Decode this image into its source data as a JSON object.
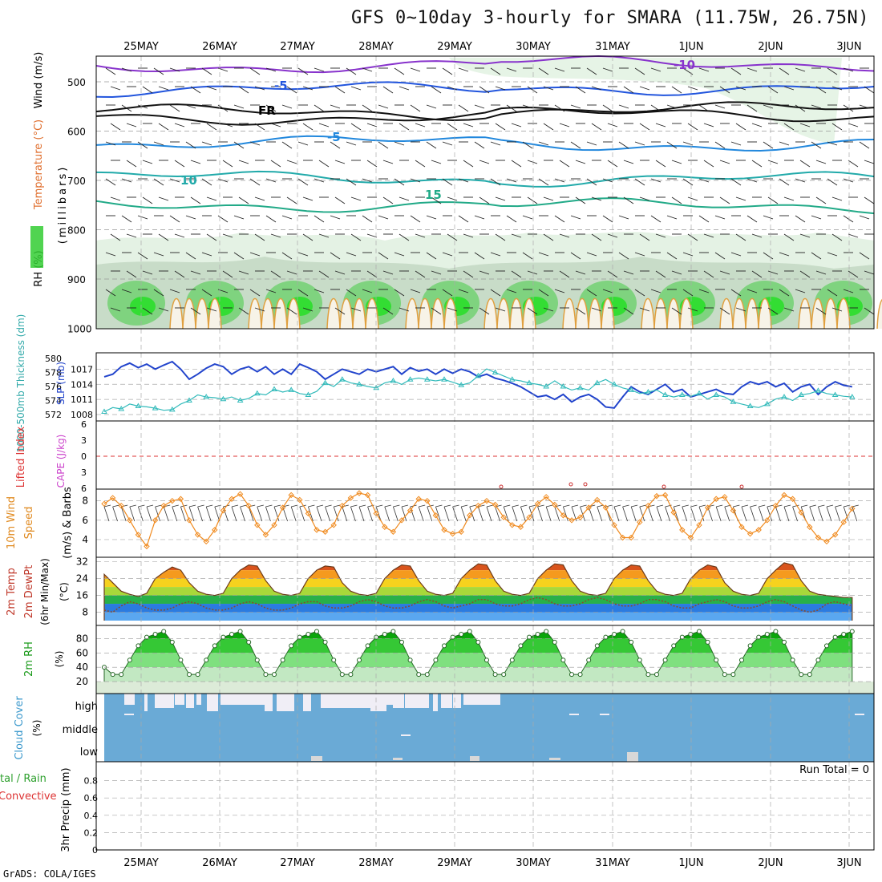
{
  "title": "GFS 0~10day 3-hourly for SMARA (11.75W, 26.75N)",
  "credit": "GrADS: COLA/IGES",
  "colors": {
    "rh_green": "#2ecc40",
    "temp_orange": "#f08a1e",
    "slp_blue": "#2244cc",
    "thickness_cyan": "#33bbbb",
    "cloud_blue": "#6aaad6",
    "li_red": "#dd3333",
    "cape_purple": "#cc44cc"
  },
  "chart_data": [
    {
      "panel": "upper-air",
      "type": "heatmap",
      "ylabel": "(millibars)",
      "ylabel_series": [
        "RH (%)",
        "Temperature (°C)",
        "Wind (m/s)"
      ],
      "x": [
        "25MAY",
        "26MAY",
        "27MAY",
        "28MAY",
        "29MAY",
        "30MAY",
        "31MAY",
        "1JUN",
        "2JUN",
        "3JUN"
      ],
      "y_ticks": [
        500,
        600,
        700,
        800,
        900,
        1000
      ],
      "ylim": [
        1000,
        450
      ],
      "contour_labels": [
        {
          "label": "-10",
          "pressure": 470
        },
        {
          "label": "-5",
          "pressure": 510
        },
        {
          "label": "FR",
          "pressure": 565
        },
        {
          "label": "-5",
          "pressure": 610
        },
        {
          "label": "10",
          "pressure": 695
        },
        {
          "label": "15",
          "pressure": 745
        }
      ]
    },
    {
      "panel": "slp-thickness",
      "type": "line",
      "y_left_label": "1000-500mb Thickness (dm)",
      "y_right_label": "SLP (mb)",
      "y_left_ticks": [
        572,
        574,
        576,
        578,
        580
      ],
      "y_right_ticks": [
        1008,
        1011,
        1014,
        1017
      ],
      "series": [
        {
          "name": "SLP (mb)",
          "values": [
            1015.5,
            1016,
            1017.5,
            1018.2,
            1017.3,
            1018,
            1017,
            1017.8,
            1018.5,
            1017,
            1015,
            1016,
            1017.2,
            1018,
            1017.5,
            1016,
            1017,
            1017.5,
            1016.5,
            1017.5,
            1016,
            1017,
            1016,
            1018,
            1017.3,
            1016.5,
            1015,
            1016,
            1017,
            1016.5,
            1016,
            1017,
            1016.5,
            1017,
            1017.5,
            1016,
            1017.3,
            1016.6,
            1017,
            1016,
            1017,
            1016.2,
            1017,
            1016.5,
            1015.5,
            1016,
            1015.2,
            1014.8,
            1014.2,
            1013.5,
            1012.5,
            1011.5,
            1011.8,
            1011,
            1012,
            1010.5,
            1011.5,
            1012,
            1011,
            1009.5,
            1009.3,
            1011.5,
            1013.5,
            1012.5,
            1012,
            1013,
            1014,
            1012.5,
            1013,
            1011.5,
            1012,
            1012.5,
            1013,
            1012.2,
            1012,
            1013.5,
            1014.5,
            1014,
            1014.5,
            1013.5,
            1014.2,
            1012.5,
            1013.5,
            1014,
            1012,
            1013.5,
            1014.5,
            1013.8,
            1013.5
          ]
        },
        {
          "name": "1000-500mb Thickness (dm)",
          "values": [
            572.4,
            573,
            572.8,
            573.5,
            573.2,
            573.1,
            572.9,
            572.6,
            572.7,
            573.5,
            574,
            574.8,
            574.5,
            574.4,
            574.2,
            574.5,
            574,
            574.3,
            575,
            574.8,
            575.6,
            575.2,
            575.5,
            575,
            574.8,
            575.3,
            576.5,
            576,
            577,
            576.5,
            576.3,
            576,
            575.8,
            576.5,
            576.8,
            576.3,
            577,
            577.2,
            577,
            576.8,
            577,
            576.6,
            576.2,
            576.5,
            577.5,
            578.5,
            578,
            577.5,
            577,
            576.8,
            576.5,
            576.3,
            576,
            576.8,
            576,
            575.5,
            575.8,
            575.5,
            576.5,
            577,
            576.3,
            575.8,
            575.5,
            575,
            575.2,
            575.5,
            574.8,
            574.5,
            574.8,
            574.6,
            575,
            574.2,
            574.8,
            574.5,
            573.8,
            573.5,
            573.2,
            573,
            573.5,
            574.2,
            574.5,
            574,
            574.8,
            575,
            575.4,
            575,
            574.8,
            574.6,
            574.5
          ]
        }
      ]
    },
    {
      "panel": "stability",
      "type": "line",
      "y_left_label": "Lifted Index",
      "y_right_label": "CAPE (J/kg)",
      "y_ticks": [
        -6,
        -3,
        0,
        3,
        6
      ],
      "series": [
        {
          "name": "CAPE (J/kg)",
          "points": [
            [
              45,
              1
            ],
            [
              60,
              1
            ],
            [
              75,
              1
            ],
            [
              85,
              1
            ]
          ]
        }
      ]
    },
    {
      "panel": "10m-wind",
      "type": "line",
      "ylabel": "10m Wind Speed (m/s) & Barbs",
      "y_ticks": [
        4,
        6,
        8
      ],
      "series": [
        {
          "name": "10m Wind Speed (m/s)",
          "values": [
            7.7,
            8.3,
            7.5,
            6,
            4.5,
            3.3,
            6,
            7.5,
            8,
            8.2,
            6,
            4.5,
            3.8,
            5,
            7,
            8.2,
            8.7,
            7.5,
            5.5,
            4.5,
            5.5,
            7.3,
            8.6,
            8.1,
            6.7,
            5,
            4.8,
            5.5,
            7.5,
            8.3,
            8.8,
            8.6,
            6.7,
            5.3,
            4.8,
            6,
            7,
            8.2,
            8,
            6.5,
            5,
            4.6,
            4.8,
            6.5,
            7.5,
            8,
            7.6,
            6.3,
            5.5,
            5.3,
            6.3,
            7.7,
            8.4,
            7.6,
            6.5,
            6,
            6.3,
            7.3,
            8.1,
            7.3,
            5.5,
            4.2,
            4.2,
            5.8,
            7.5,
            8.5,
            8.6,
            6.8,
            5,
            4.2,
            5.5,
            7.3,
            8.2,
            8.4,
            7,
            5.3,
            4.6,
            5,
            6,
            7.5,
            8.6,
            8.2,
            6.8,
            5.3,
            4.2,
            3.8,
            4.5,
            5.8,
            7.2
          ]
        }
      ]
    },
    {
      "panel": "2m-temp",
      "type": "area",
      "ylabel": "2m Temp 2m DewPt (6hr Min/Max) (°C)",
      "y_ticks": [
        8,
        16,
        24,
        32
      ],
      "series": [
        {
          "name": "2m Temp",
          "values": [
            26,
            22,
            18,
            16.5,
            15.5,
            17,
            24,
            27,
            29.5,
            28,
            22,
            18,
            16.5,
            16,
            17,
            24,
            28,
            30.5,
            30,
            23,
            18,
            16.5,
            16,
            17,
            24,
            28,
            30,
            29.5,
            22,
            18,
            16.5,
            16,
            17,
            24,
            28,
            30.5,
            30,
            23,
            18,
            16.5,
            16,
            17,
            24,
            28,
            31,
            30.5,
            23,
            18,
            16.5,
            16,
            17,
            24,
            28,
            31,
            30.5,
            23,
            18,
            16.5,
            16,
            17,
            24,
            28,
            30.5,
            30,
            23,
            18,
            16.5,
            16,
            17,
            24,
            28,
            30.5,
            29.5,
            22,
            18,
            16.5,
            16,
            17,
            24,
            28,
            31.5,
            30.5,
            23,
            18,
            16.5,
            16,
            15.5,
            15,
            15
          ]
        },
        {
          "name": "2m DewPt",
          "values": [
            9,
            8,
            11,
            13,
            12,
            10,
            9,
            9,
            10,
            12,
            13,
            12,
            10,
            9,
            9,
            10,
            12,
            13,
            12,
            10,
            9,
            9,
            10,
            12,
            13,
            13,
            11,
            10,
            10,
            11,
            13,
            14,
            13,
            11,
            10,
            10,
            11,
            13,
            14,
            13,
            11,
            10,
            11,
            12,
            14,
            14,
            12,
            11,
            11,
            12,
            14,
            15,
            14,
            12,
            11,
            11,
            12,
            14,
            15,
            14,
            12,
            11,
            11,
            12,
            14,
            14,
            13,
            11,
            10,
            10,
            12,
            13,
            14,
            13,
            11,
            10,
            10,
            11,
            13,
            14,
            13,
            11,
            9,
            8,
            9,
            12,
            13,
            12,
            11
          ]
        }
      ]
    },
    {
      "panel": "2m-rh",
      "type": "area",
      "ylabel": "2m RH (%)",
      "y_ticks": [
        20,
        40,
        60,
        80
      ],
      "series": [
        {
          "name": "2m RH",
          "values": [
            40,
            30,
            30,
            50,
            70,
            82,
            86,
            90,
            75,
            50,
            30,
            30,
            50,
            70,
            82,
            86,
            90,
            75,
            50,
            30,
            30,
            50,
            70,
            82,
            86,
            90,
            75,
            50,
            30,
            30,
            50,
            70,
            82,
            86,
            90,
            75,
            50,
            30,
            30,
            50,
            70,
            82,
            86,
            90,
            75,
            50,
            30,
            30,
            50,
            70,
            82,
            86,
            90,
            75,
            50,
            30,
            30,
            50,
            70,
            82,
            86,
            90,
            75,
            50,
            30,
            30,
            50,
            70,
            82,
            86,
            90,
            75,
            50,
            30,
            30,
            50,
            70,
            82,
            86,
            90,
            75,
            50,
            30,
            30,
            50,
            70,
            82,
            86,
            90
          ]
        }
      ]
    },
    {
      "panel": "cloud-cover",
      "type": "heatmap",
      "ylabel": "Cloud Cover (%)",
      "y_categories": [
        "high",
        "middle",
        "low"
      ]
    },
    {
      "panel": "precip",
      "type": "bar",
      "ylabel": "3hr Precip (mm)",
      "ylabel_series": [
        "Total / Rain",
        "Convective"
      ],
      "y_ticks": [
        0,
        0.2,
        0.4,
        0.6,
        0.8
      ],
      "ylim": [
        0,
        1
      ],
      "annotation": "Run Total = 0"
    }
  ],
  "y_axis_labels": {
    "upper_air_rh": "RH (%)",
    "upper_air_temp": "Temperature (°C)",
    "upper_air_wind": "Wind (m/s)",
    "upper_air_mb": "(millibars)",
    "thickness": "1000-500mb Thickness (dm)",
    "slp": "SLP (mb)",
    "li": "Lifted Index",
    "cape": "CAPE (J/kg)",
    "wind10_a": "10m Wind",
    "wind10_b": "Speed",
    "wind10_c": "(m/s) & Barbs",
    "temp_a": "2m Temp",
    "temp_b": "2m DewPt",
    "temp_c": "(6hr Min/Max)",
    "temp_d": "(°C)",
    "rh2_a": "2m RH",
    "rh2_b": "(%)",
    "cloud_a": "Cloud Cover",
    "cloud_b": "(%)",
    "precip_a": "tal / Rain",
    "precip_b": "Convective",
    "precip_c": "3hr Precip (mm)"
  },
  "run_total": "Run Total = 0"
}
